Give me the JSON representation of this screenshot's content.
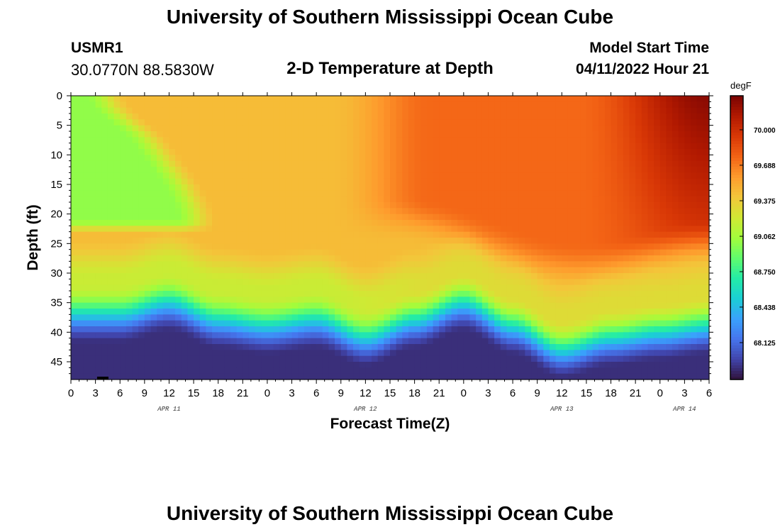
{
  "header": {
    "title": "University of Southern Mississippi Ocean Cube",
    "station_id": "USMR1",
    "coordinates": "30.0770N  88.5830W",
    "subtitle": "2-D Temperature at Depth",
    "model_start_label": "Model Start Time",
    "model_start_value": "04/11/2022 Hour 21"
  },
  "footer": {
    "title": "University of Southern Mississippi Ocean Cube"
  },
  "chart_data": {
    "type": "heatmap",
    "title": "2-D Temperature at Depth",
    "xlabel": "Forecast Time(Z)",
    "ylabel": "Depth (ft)",
    "units": "degF",
    "x_hours_range": [
      0,
      78
    ],
    "y_depth_range": [
      0,
      48
    ],
    "y_reversed": true,
    "x_tick_labels": [
      "0",
      "3",
      "6",
      "9",
      "12",
      "15",
      "18",
      "21",
      "0",
      "3",
      "6",
      "9",
      "12",
      "15",
      "18",
      "21",
      "0",
      "3",
      "6",
      "9",
      "12",
      "15",
      "18",
      "21",
      "0",
      "3",
      "6"
    ],
    "y_tick_labels": [
      "0",
      "5",
      "10",
      "15",
      "20",
      "25",
      "30",
      "35",
      "40",
      "45"
    ],
    "date_labels": [
      {
        "label": "APR 11",
        "hour": 12
      },
      {
        "label": "APR 12",
        "hour": 36
      },
      {
        "label": "APR 13",
        "hour": 60
      },
      {
        "label": "APR 14",
        "hour": 75
      }
    ],
    "colorbar": {
      "min": 67.8,
      "max": 70.3,
      "tick_values": [
        70.0,
        69.688,
        69.375,
        69.062,
        68.75,
        68.438,
        68.125
      ],
      "tick_labels": [
        "70.000",
        "69.688",
        "69.375",
        "69.062",
        "68.750",
        "68.438",
        "68.125"
      ],
      "colors": [
        "#30123b",
        "#4145ab",
        "#4675ed",
        "#39a2fc",
        "#1bcfd4",
        "#24eca6",
        "#61fc6c",
        "#a4fc3b",
        "#d1e834",
        "#f3c63a",
        "#fe9b2d",
        "#f36315",
        "#d93806",
        "#b11901",
        "#7a0402"
      ]
    },
    "temperature_model": {
      "description": "Estimated temperature field (degF) vs forecast hour and depth, read from the color scale",
      "near_shore_cool_zone": {
        "hours": [
          0,
          12
        ],
        "depths_ft": [
          0,
          22
        ],
        "temp": 69.0
      },
      "warm_layer_temp": 69.45,
      "hot_surface_temp_range": [
        69.75,
        70.25
      ],
      "thermocline_depth_ft_by_hour": [
        [
          0,
          33
        ],
        [
          6,
          33
        ],
        [
          12,
          31
        ],
        [
          18,
          34
        ],
        [
          24,
          35
        ],
        [
          30,
          34
        ],
        [
          36,
          37
        ],
        [
          42,
          34
        ],
        [
          48,
          31
        ],
        [
          54,
          35
        ],
        [
          60,
          39
        ],
        [
          66,
          37
        ],
        [
          72,
          36
        ],
        [
          78,
          35
        ]
      ],
      "bottom_temp": 67.9
    }
  }
}
